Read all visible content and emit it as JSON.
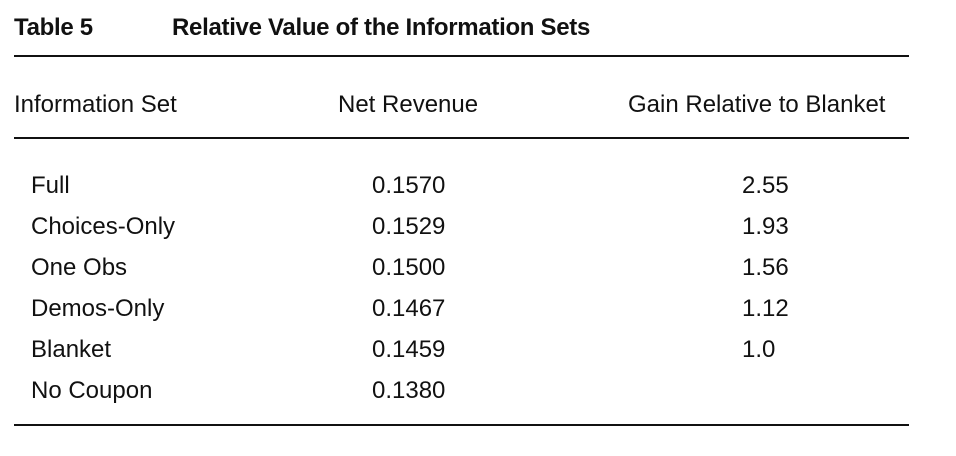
{
  "table": {
    "label": "Table 5",
    "title": "Relative Value of the Information Sets",
    "columns": [
      "Information Set",
      "Net Revenue",
      "Gain Relative to Blanket"
    ],
    "rows": [
      {
        "name": "Full",
        "net_revenue": "0.1570",
        "gain": "2.55"
      },
      {
        "name": "Choices-Only",
        "net_revenue": "0.1529",
        "gain": "1.93"
      },
      {
        "name": "One Obs",
        "net_revenue": "0.1500",
        "gain": "1.56"
      },
      {
        "name": "Demos-Only",
        "net_revenue": "0.1467",
        "gain": "1.12"
      },
      {
        "name": "Blanket",
        "net_revenue": "0.1459",
        "gain": "1.0"
      },
      {
        "name": "No Coupon",
        "net_revenue": "0.1380",
        "gain": ""
      }
    ]
  }
}
